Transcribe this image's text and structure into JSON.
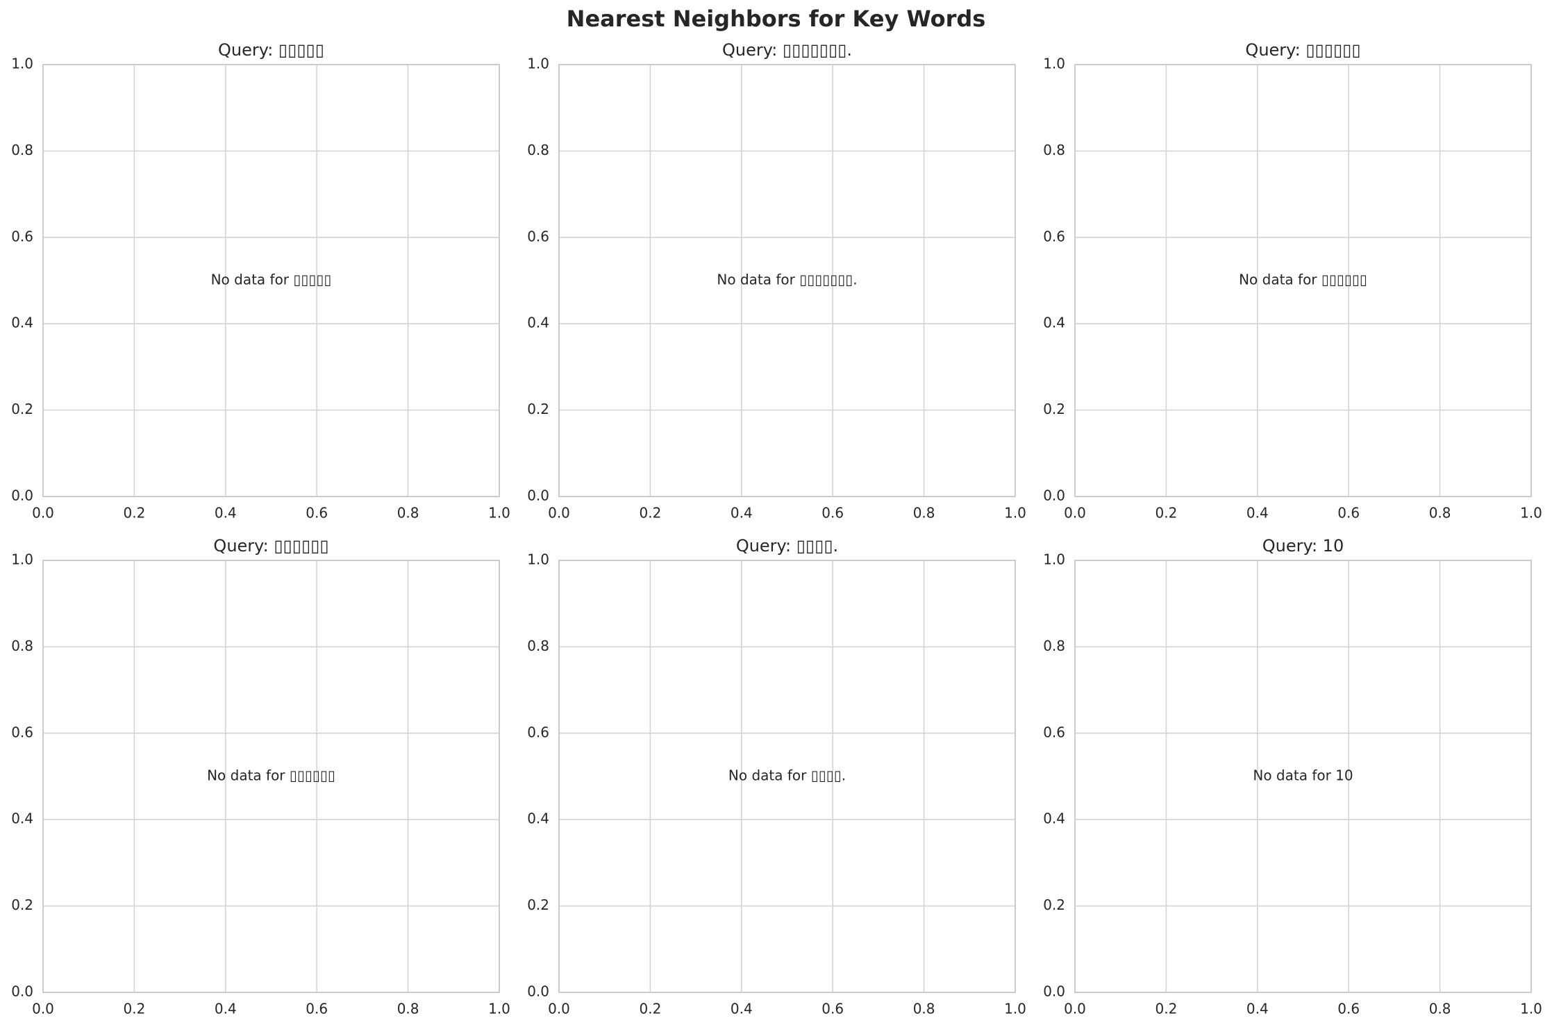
{
  "figure": {
    "suptitle": "Nearest Neighbors for Key Words"
  },
  "chart_data": [
    {
      "type": "scatter",
      "title": "Query: ▯▯▯▯▯",
      "message": "No data for ▯▯▯▯▯",
      "xlabel": "",
      "ylabel": "",
      "xlim": [
        0,
        1
      ],
      "ylim": [
        0,
        1
      ],
      "x_ticks": [
        "0.0",
        "0.2",
        "0.4",
        "0.6",
        "0.8",
        "1.0"
      ],
      "y_ticks": [
        "0.0",
        "0.2",
        "0.4",
        "0.6",
        "0.8",
        "1.0"
      ],
      "grid": true,
      "points": []
    },
    {
      "type": "scatter",
      "title": "Query: ▯▯▯▯▯▯▯.",
      "message": "No data for ▯▯▯▯▯▯▯.",
      "xlabel": "",
      "ylabel": "",
      "xlim": [
        0,
        1
      ],
      "ylim": [
        0,
        1
      ],
      "x_ticks": [
        "0.0",
        "0.2",
        "0.4",
        "0.6",
        "0.8",
        "1.0"
      ],
      "y_ticks": [
        "0.0",
        "0.2",
        "0.4",
        "0.6",
        "0.8",
        "1.0"
      ],
      "grid": true,
      "points": []
    },
    {
      "type": "scatter",
      "title": "Query: ▯▯▯▯▯▯",
      "message": "No data for ▯▯▯▯▯▯",
      "xlabel": "",
      "ylabel": "",
      "xlim": [
        0,
        1
      ],
      "ylim": [
        0,
        1
      ],
      "x_ticks": [
        "0.0",
        "0.2",
        "0.4",
        "0.6",
        "0.8",
        "1.0"
      ],
      "y_ticks": [
        "0.0",
        "0.2",
        "0.4",
        "0.6",
        "0.8",
        "1.0"
      ],
      "grid": true,
      "points": []
    },
    {
      "type": "scatter",
      "title": "Query: ▯▯▯▯▯▯",
      "message": "No data for ▯▯▯▯▯▯",
      "xlabel": "",
      "ylabel": "",
      "xlim": [
        0,
        1
      ],
      "ylim": [
        0,
        1
      ],
      "x_ticks": [
        "0.0",
        "0.2",
        "0.4",
        "0.6",
        "0.8",
        "1.0"
      ],
      "y_ticks": [
        "0.0",
        "0.2",
        "0.4",
        "0.6",
        "0.8",
        "1.0"
      ],
      "grid": true,
      "points": []
    },
    {
      "type": "scatter",
      "title": "Query: ▯▯▯▯.",
      "message": "No data for ▯▯▯▯.",
      "xlabel": "",
      "ylabel": "",
      "xlim": [
        0,
        1
      ],
      "ylim": [
        0,
        1
      ],
      "x_ticks": [
        "0.0",
        "0.2",
        "0.4",
        "0.6",
        "0.8",
        "1.0"
      ],
      "y_ticks": [
        "0.0",
        "0.2",
        "0.4",
        "0.6",
        "0.8",
        "1.0"
      ],
      "grid": true,
      "points": []
    },
    {
      "type": "scatter",
      "title": "Query: 10",
      "message": "No data for 10",
      "xlabel": "",
      "ylabel": "",
      "xlim": [
        0,
        1
      ],
      "ylim": [
        0,
        1
      ],
      "x_ticks": [
        "0.0",
        "0.2",
        "0.4",
        "0.6",
        "0.8",
        "1.0"
      ],
      "y_ticks": [
        "0.0",
        "0.2",
        "0.4",
        "0.6",
        "0.8",
        "1.0"
      ],
      "grid": true,
      "points": []
    }
  ],
  "colors": {
    "grid": "#d4d4d4",
    "spine": "#cccccc",
    "text": "#262626",
    "background": "#ffffff"
  }
}
